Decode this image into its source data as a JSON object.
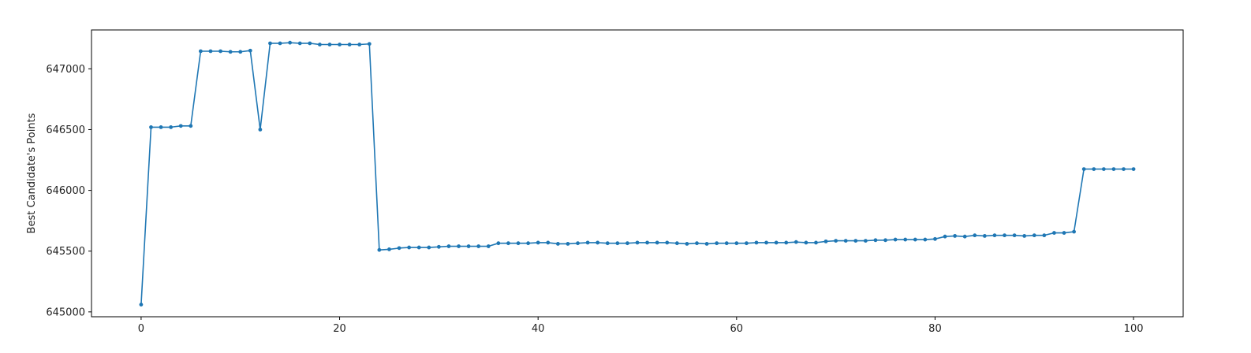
{
  "chart_data": {
    "type": "line",
    "title": "",
    "xlabel": "",
    "ylabel": "Best Candidate's Points",
    "xlim": [
      -5,
      105
    ],
    "ylim": [
      644960,
      647320
    ],
    "xticks": [
      0,
      20,
      40,
      60,
      80,
      100
    ],
    "yticks": [
      645000,
      645500,
      646000,
      646500,
      647000
    ],
    "grid": false,
    "legend": "none",
    "series": [
      {
        "color": "#1f77b4",
        "marker": "circle",
        "x": [
          0,
          1,
          2,
          3,
          4,
          5,
          6,
          7,
          8,
          9,
          10,
          11,
          12,
          13,
          14,
          15,
          16,
          17,
          18,
          19,
          20,
          21,
          22,
          23,
          24,
          25,
          26,
          27,
          28,
          29,
          30,
          31,
          32,
          33,
          34,
          35,
          36,
          37,
          38,
          39,
          40,
          41,
          42,
          43,
          44,
          45,
          46,
          47,
          48,
          49,
          50,
          51,
          52,
          53,
          54,
          55,
          56,
          57,
          58,
          59,
          60,
          61,
          62,
          63,
          64,
          65,
          66,
          67,
          68,
          69,
          70,
          71,
          72,
          73,
          74,
          75,
          76,
          77,
          78,
          79,
          80,
          81,
          82,
          83,
          84,
          85,
          86,
          87,
          88,
          89,
          90,
          91,
          92,
          93,
          94,
          95,
          96,
          97,
          98,
          99,
          100
        ],
        "y": [
          645060,
          646520,
          646520,
          646520,
          646530,
          646530,
          647145,
          647145,
          647145,
          647140,
          647140,
          647150,
          646500,
          647210,
          647210,
          647215,
          647210,
          647210,
          647200,
          647200,
          647200,
          647200,
          647200,
          647205,
          645510,
          645515,
          645525,
          645530,
          645530,
          645530,
          645535,
          645540,
          645540,
          645540,
          645540,
          645540,
          645565,
          645565,
          645565,
          645565,
          645570,
          645570,
          645560,
          645560,
          645565,
          645570,
          645570,
          645565,
          645565,
          645565,
          645570,
          645570,
          645570,
          645570,
          645565,
          645560,
          645565,
          645560,
          645565,
          645565,
          645565,
          645565,
          645570,
          645570,
          645570,
          645570,
          645575,
          645570,
          645570,
          645580,
          645585,
          645585,
          645585,
          645585,
          645590,
          645590,
          645595,
          645595,
          645595,
          645595,
          645600,
          645620,
          645625,
          645620,
          645630,
          645625,
          645630,
          645630,
          645630,
          645625,
          645630,
          645630,
          645650,
          645650,
          645660,
          646175,
          646175,
          646175,
          646175,
          646175,
          646175
        ]
      }
    ]
  }
}
